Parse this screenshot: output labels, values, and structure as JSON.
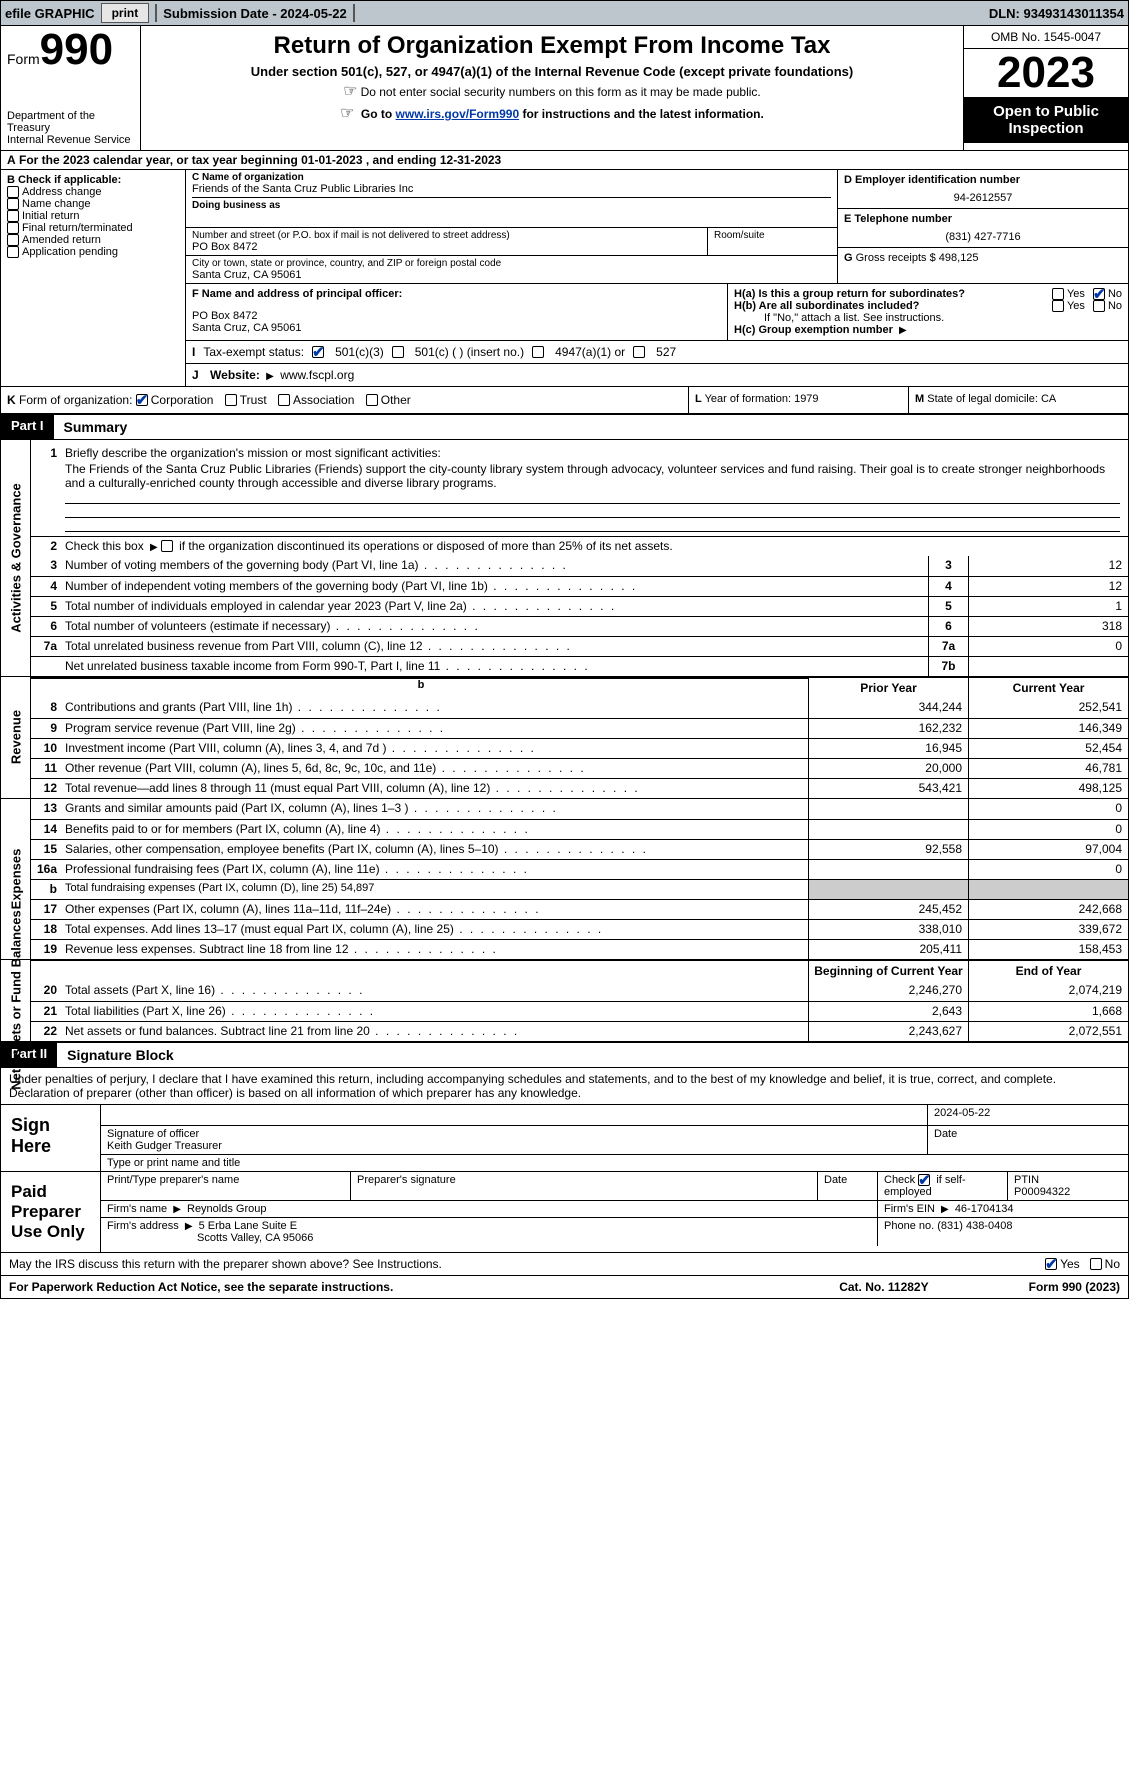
{
  "topbar": {
    "efile": "efile GRAPHIC",
    "print": "print",
    "submission": "Submission Date - 2024-05-22",
    "dln": "DLN: 93493143011354"
  },
  "header": {
    "form_word": "Form",
    "form_no": "990",
    "dept": "Department of the Treasury",
    "irs": "Internal Revenue Service",
    "title": "Return of Organization Exempt From Income Tax",
    "sub": "Under section 501(c), 527, or 4947(a)(1) of the Internal Revenue Code (except private foundations)",
    "ssn": "Do not enter social security numbers on this form as it may be made public.",
    "goto_pre": "Go to ",
    "goto_link": "www.irs.gov/Form990",
    "goto_post": " for instructions and the latest information.",
    "omb": "OMB No. 1545-0047",
    "year": "2023",
    "open": "Open to Public Inspection"
  },
  "row_a": "For the 2023 calendar year, or tax year beginning 01-01-2023    , and ending 12-31-2023",
  "box_b": {
    "title": "B Check if applicable:",
    "items": [
      "Address change",
      "Name change",
      "Initial return",
      "Final return/terminated",
      "Amended return",
      "Application pending"
    ]
  },
  "box_c": {
    "label_name": "C Name of organization",
    "name": "Friends of the Santa Cruz Public Libraries Inc",
    "dba_label": "Doing business as",
    "street_label": "Number and street (or P.O. box if mail is not delivered to street address)",
    "street": "PO Box 8472",
    "suite_label": "Room/suite",
    "city_label": "City or town, state or province, country, and ZIP or foreign postal code",
    "city": "Santa Cruz, CA  95061"
  },
  "box_d": {
    "label": "D Employer identification number",
    "value": "94-2612557"
  },
  "box_e": {
    "label": "E Telephone number",
    "value": "(831) 427-7716"
  },
  "box_g": {
    "label": "G",
    "text": "Gross receipts $",
    "value": "498,125"
  },
  "box_f": {
    "label": "F  Name and address of principal officer:",
    "addr1": "PO Box 8472",
    "addr2": "Santa Cruz, CA  95061"
  },
  "box_h": {
    "a": "H(a)  Is this a group return for subordinates?",
    "b": "H(b)  Are all subordinates included?",
    "b_note": "If \"No,\" attach a list. See instructions.",
    "c": "H(c)  Group exemption number",
    "yes": "Yes",
    "no": "No"
  },
  "box_i": {
    "label": "I",
    "text": "Tax-exempt status:",
    "o1": "501(c)(3)",
    "o2": "501(c) (  ) (insert no.)",
    "o3": "4947(a)(1) or",
    "o4": "527"
  },
  "box_j": {
    "label": "J",
    "text": "Website:",
    "value": "www.fscpl.org"
  },
  "box_k": {
    "label": "K",
    "text": "Form of organization:",
    "o1": "Corporation",
    "o2": "Trust",
    "o3": "Association",
    "o4": "Other"
  },
  "box_l": {
    "label": "L",
    "text": "Year of formation: 1979"
  },
  "box_m": {
    "label": "M",
    "text": "State of legal domicile: CA"
  },
  "parts": {
    "p1": "Part I",
    "p1_title": "Summary",
    "p2": "Part II",
    "p2_title": "Signature Block"
  },
  "sections": {
    "act": "Activities & Governance",
    "rev": "Revenue",
    "exp": "Expenses",
    "net": "Net Assets or Fund Balances"
  },
  "line1": {
    "num": "1",
    "text": "Briefly describe the organization's mission or most significant activities:",
    "mission": "The Friends of the Santa Cruz Public Libraries (Friends) support the city-county library system through advocacy, volunteer services and fund raising. Their goal is to create stronger neighborhoods and a culturally-enriched county through accessible and diverse library programs."
  },
  "line2": {
    "num": "2",
    "text": "Check this box ",
    "text2": " if the organization discontinued its operations or disposed of more than 25% of its net assets."
  },
  "lines_act": [
    {
      "num": "3",
      "text": "Number of voting members of the governing body (Part VI, line 1a)",
      "cell": "3",
      "val": "12"
    },
    {
      "num": "4",
      "text": "Number of independent voting members of the governing body (Part VI, line 1b)",
      "cell": "4",
      "val": "12"
    },
    {
      "num": "5",
      "text": "Total number of individuals employed in calendar year 2023 (Part V, line 2a)",
      "cell": "5",
      "val": "1"
    },
    {
      "num": "6",
      "text": "Total number of volunteers (estimate if necessary)",
      "cell": "6",
      "val": "318"
    },
    {
      "num": "7a",
      "text": "Total unrelated business revenue from Part VIII, column (C), line 12",
      "cell": "7a",
      "val": "0"
    },
    {
      "num": "",
      "text": "Net unrelated business taxable income from Form 990-T, Part I, line 11",
      "cell": "7b",
      "val": ""
    }
  ],
  "year_hdr": {
    "prior": "Prior Year",
    "current": "Current Year"
  },
  "lines_rev": [
    {
      "num": "8",
      "text": "Contributions and grants (Part VIII, line 1h)",
      "prior": "344,244",
      "curr": "252,541"
    },
    {
      "num": "9",
      "text": "Program service revenue (Part VIII, line 2g)",
      "prior": "162,232",
      "curr": "146,349"
    },
    {
      "num": "10",
      "text": "Investment income (Part VIII, column (A), lines 3, 4, and 7d )",
      "prior": "16,945",
      "curr": "52,454"
    },
    {
      "num": "11",
      "text": "Other revenue (Part VIII, column (A), lines 5, 6d, 8c, 9c, 10c, and 11e)",
      "prior": "20,000",
      "curr": "46,781"
    },
    {
      "num": "12",
      "text": "Total revenue—add lines 8 through 11 (must equal Part VIII, column (A), line 12)",
      "prior": "543,421",
      "curr": "498,125"
    }
  ],
  "lines_exp": [
    {
      "num": "13",
      "text": "Grants and similar amounts paid (Part IX, column (A), lines 1–3 )",
      "prior": "",
      "curr": "0"
    },
    {
      "num": "14",
      "text": "Benefits paid to or for members (Part IX, column (A), line 4)",
      "prior": "",
      "curr": "0"
    },
    {
      "num": "15",
      "text": "Salaries, other compensation, employee benefits (Part IX, column (A), lines 5–10)",
      "prior": "92,558",
      "curr": "97,004"
    },
    {
      "num": "16a",
      "text": "Professional fundraising fees (Part IX, column (A), line 11e)",
      "prior": "",
      "curr": "0"
    },
    {
      "num": "b",
      "text": "Total fundraising expenses (Part IX, column (D), line 25) 54,897",
      "prior": "grey",
      "curr": "grey"
    },
    {
      "num": "17",
      "text": "Other expenses (Part IX, column (A), lines 11a–11d, 11f–24e)",
      "prior": "245,452",
      "curr": "242,668"
    },
    {
      "num": "18",
      "text": "Total expenses. Add lines 13–17 (must equal Part IX, column (A), line 25)",
      "prior": "338,010",
      "curr": "339,672"
    },
    {
      "num": "19",
      "text": "Revenue less expenses. Subtract line 18 from line 12",
      "prior": "205,411",
      "curr": "158,453"
    }
  ],
  "year_hdr2": {
    "prior": "Beginning of Current Year",
    "current": "End of Year"
  },
  "lines_net": [
    {
      "num": "20",
      "text": "Total assets (Part X, line 16)",
      "prior": "2,246,270",
      "curr": "2,074,219"
    },
    {
      "num": "21",
      "text": "Total liabilities (Part X, line 26)",
      "prior": "2,643",
      "curr": "1,668"
    },
    {
      "num": "22",
      "text": "Net assets or fund balances. Subtract line 21 from line 20",
      "prior": "2,243,627",
      "curr": "2,072,551"
    }
  ],
  "sig": {
    "decl": "Under penalties of perjury, I declare that I have examined this return, including accompanying schedules and statements, and to the best of my knowledge and belief, it is true, correct, and complete. Declaration of preparer (other than officer) is based on all information of which preparer has any knowledge.",
    "sign_here": "Sign Here",
    "sig_officer": "Signature of officer",
    "date": "Date",
    "date_val": "2024-05-22",
    "name_title": "Keith Gudger  Treasurer",
    "type_name": "Type or print name and title",
    "paid": "Paid Preparer Use Only",
    "prep_name": "Print/Type preparer's name",
    "prep_sig": "Preparer's signature",
    "check": "Check",
    "self": "if self-employed",
    "ptin_label": "PTIN",
    "ptin": "P00094322",
    "firm_name_label": "Firm's name",
    "firm_name": "Reynolds Group",
    "firm_ein_label": "Firm's EIN",
    "firm_ein": "46-1704134",
    "firm_addr_label": "Firm's address",
    "firm_addr1": "5 Erba Lane Suite E",
    "firm_addr2": "Scotts Valley, CA  95066",
    "phone_label": "Phone no.",
    "phone": "(831) 438-0408"
  },
  "discuss": {
    "text": "May the IRS discuss this return with the preparer shown above? See Instructions.",
    "yes": "Yes",
    "no": "No"
  },
  "footer": {
    "left": "For Paperwork Reduction Act Notice, see the separate instructions.",
    "mid": "Cat. No. 11282Y",
    "right": "Form 990 (2023)"
  }
}
